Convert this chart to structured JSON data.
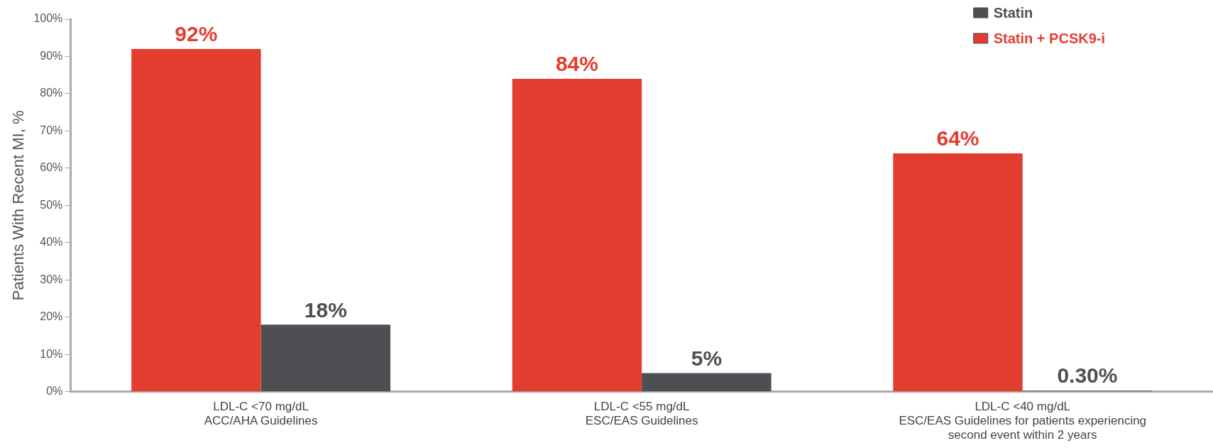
{
  "chart_data": {
    "type": "bar",
    "ylabel": "Patients With Recent MI, %",
    "categories": [
      "LDL-C <70 mg/dL\nACC/AHA Guidelines",
      "LDL-C <55 mg/dL\nESC/EAS Guidelines",
      "LDL-C <40 mg/dL\nESC/EAS Guidelines for patients experiencing\nsecond event within 2 years"
    ],
    "series": [
      {
        "name": "Statin + PCSK9-i",
        "color": "#e33d30",
        "values": [
          92,
          84,
          64
        ],
        "value_labels": [
          "92%",
          "84%",
          "64%"
        ]
      },
      {
        "name": "Statin",
        "color": "#4d4f53",
        "values": [
          18,
          5,
          0.3
        ],
        "value_labels": [
          "18%",
          "5%",
          "0.30%"
        ]
      }
    ],
    "ylim": [
      0,
      100
    ],
    "yticks": [
      {
        "value": 0,
        "label": "0%"
      },
      {
        "value": 10,
        "label": "10%"
      },
      {
        "value": 20,
        "label": "20%"
      },
      {
        "value": 30,
        "label": "30%"
      },
      {
        "value": 40,
        "label": "40%"
      },
      {
        "value": 50,
        "label": "50%"
      },
      {
        "value": 60,
        "label": "60%"
      },
      {
        "value": 70,
        "label": "70%"
      },
      {
        "value": 80,
        "label": "80%"
      },
      {
        "value": 90,
        "label": "90%"
      },
      {
        "value": 100,
        "label": "100%"
      }
    ],
    "grid": false,
    "legend": "top right"
  }
}
